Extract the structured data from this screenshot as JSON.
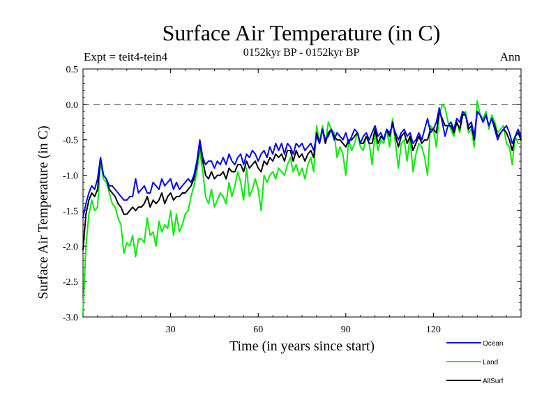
{
  "chart_data": {
    "type": "line",
    "title": "Surface Air Temperature (in C)",
    "subtitle": "0152kyr BP - 0152kyr BP",
    "experiment_label": "Expt = teit4-tein4",
    "season_label": "Ann",
    "xlabel": "Time (in years since start)",
    "ylabel": "Surface Air Temperature (in C)",
    "xlim": [
      0,
      150
    ],
    "ylim": [
      -3.0,
      0.5
    ],
    "x_ticks": [
      30,
      60,
      90,
      120
    ],
    "y_ticks": [
      0.5,
      0.0,
      -0.5,
      -1.0,
      -1.5,
      -2.0,
      -2.5,
      -3.0
    ],
    "y_tick_labels": [
      "0.5",
      "0.0",
      "-0.5",
      "-1.0",
      "-1.5",
      "-2.0",
      "-2.5",
      "-3.0"
    ],
    "reference_line": 0.0,
    "x": [
      0,
      1,
      2,
      3,
      4,
      5,
      6,
      7,
      8,
      9,
      10,
      11,
      12,
      13,
      14,
      15,
      16,
      17,
      18,
      19,
      20,
      21,
      22,
      23,
      24,
      25,
      26,
      27,
      28,
      29,
      30,
      31,
      32,
      33,
      34,
      35,
      36,
      37,
      38,
      39,
      40,
      41,
      42,
      43,
      44,
      45,
      46,
      47,
      48,
      49,
      50,
      51,
      52,
      53,
      54,
      55,
      56,
      57,
      58,
      59,
      60,
      61,
      62,
      63,
      64,
      65,
      66,
      67,
      68,
      69,
      70,
      71,
      72,
      73,
      74,
      75,
      76,
      77,
      78,
      79,
      80,
      81,
      82,
      83,
      84,
      85,
      86,
      87,
      88,
      89,
      90,
      91,
      92,
      93,
      94,
      95,
      96,
      97,
      98,
      99,
      100,
      101,
      102,
      103,
      104,
      105,
      106,
      107,
      108,
      109,
      110,
      111,
      112,
      113,
      114,
      115,
      116,
      117,
      118,
      119,
      120,
      121,
      122,
      123,
      124,
      125,
      126,
      127,
      128,
      129,
      130,
      131,
      132,
      133,
      134,
      135,
      136,
      137,
      138,
      139,
      140,
      141,
      142,
      143,
      144,
      145,
      146,
      147,
      148,
      149,
      150
    ],
    "series": [
      {
        "name": "Ocean",
        "color": "#0000ff",
        "values": [
          -1.6,
          -1.4,
          -1.25,
          -1.15,
          -1.2,
          -1.05,
          -0.75,
          -1.0,
          -1.05,
          -1.15,
          -1.15,
          -1.2,
          -1.25,
          -1.3,
          -1.35,
          -1.35,
          -1.3,
          -1.3,
          -1.05,
          -1.25,
          -1.2,
          -1.15,
          -1.25,
          -1.25,
          -1.1,
          -1.15,
          -1.2,
          -1.05,
          -1.15,
          -1.1,
          -1.05,
          -1.2,
          -1.1,
          -1.2,
          -1.15,
          -1.1,
          -1.05,
          -1.1,
          -1.0,
          -0.8,
          -0.5,
          -0.75,
          -0.85,
          -0.8,
          -0.8,
          -0.9,
          -0.8,
          -0.85,
          -0.75,
          -0.85,
          -0.7,
          -0.8,
          -0.85,
          -0.75,
          -0.7,
          -0.85,
          -0.7,
          -0.75,
          -0.65,
          -0.7,
          -0.8,
          -0.7,
          -0.65,
          -0.75,
          -0.6,
          -0.7,
          -0.55,
          -0.65,
          -0.55,
          -0.7,
          -0.55,
          -0.6,
          -0.7,
          -0.55,
          -0.6,
          -0.55,
          -0.65,
          -0.6,
          -0.55,
          -0.65,
          -0.45,
          -0.55,
          -0.35,
          -0.5,
          -0.45,
          -0.35,
          -0.5,
          -0.4,
          -0.45,
          -0.5,
          -0.4,
          -0.55,
          -0.45,
          -0.35,
          -0.4,
          -0.55,
          -0.45,
          -0.4,
          -0.5,
          -0.4,
          -0.3,
          -0.45,
          -0.4,
          -0.5,
          -0.35,
          -0.4,
          -0.3,
          -0.4,
          -0.5,
          -0.4,
          -0.35,
          -0.45,
          -0.4,
          -0.55,
          -0.5,
          -0.4,
          -0.5,
          -0.35,
          -0.2,
          -0.4,
          -0.35,
          -0.25,
          -0.05,
          -0.25,
          -0.45,
          -0.3,
          -0.25,
          -0.35,
          -0.2,
          -0.25,
          -0.1,
          -0.15,
          -0.3,
          -0.25,
          -0.45,
          -0.1,
          -0.15,
          -0.25,
          -0.15,
          -0.3,
          -0.2,
          -0.35,
          -0.5,
          -0.4,
          -0.35,
          -0.3,
          -0.4,
          -0.55,
          -0.45,
          -0.35,
          -0.45
        ]
      },
      {
        "name": "Land",
        "color": "#00ee00",
        "values": [
          -2.95,
          -2.0,
          -1.55,
          -1.35,
          -1.5,
          -1.45,
          -0.8,
          -1.05,
          -1.1,
          -1.25,
          -1.4,
          -1.45,
          -1.6,
          -1.7,
          -2.1,
          -1.95,
          -2.0,
          -1.85,
          -2.15,
          -1.9,
          -1.9,
          -1.95,
          -1.6,
          -1.85,
          -1.8,
          -2.0,
          -1.65,
          -1.8,
          -1.7,
          -1.75,
          -1.5,
          -1.85,
          -1.55,
          -1.8,
          -1.7,
          -1.55,
          -1.5,
          -1.3,
          -1.15,
          -0.95,
          -0.65,
          -0.95,
          -1.3,
          -1.4,
          -1.2,
          -1.45,
          -1.35,
          -1.25,
          -1.3,
          -1.4,
          -1.1,
          -1.3,
          -1.15,
          -0.95,
          -1.1,
          -1.35,
          -0.9,
          -1.3,
          -1.2,
          -1.05,
          -1.2,
          -1.5,
          -1.0,
          -1.1,
          -1.0,
          -0.95,
          -1.05,
          -0.9,
          -0.95,
          -1.0,
          -0.85,
          -0.75,
          -0.95,
          -0.85,
          -1.0,
          -0.9,
          -1.05,
          -0.85,
          -0.75,
          -0.95,
          -0.3,
          -0.55,
          -0.3,
          -0.55,
          -0.25,
          -0.35,
          -0.4,
          -0.75,
          -0.6,
          -0.7,
          -1.0,
          -0.5,
          -0.65,
          -0.55,
          -0.4,
          -0.6,
          -0.65,
          -0.45,
          -0.55,
          -0.85,
          -0.4,
          -0.65,
          -0.5,
          -0.55,
          -0.35,
          -0.6,
          -0.2,
          -0.55,
          -0.9,
          -0.55,
          -0.5,
          -0.8,
          -0.45,
          -0.95,
          -0.7,
          -0.55,
          -0.6,
          -0.75,
          -1.0,
          -0.3,
          -0.35,
          -0.6,
          -0.15,
          0.0,
          -0.05,
          -0.25,
          -0.35,
          -0.45,
          -0.25,
          -0.4,
          -0.15,
          -0.1,
          -0.4,
          -0.35,
          -0.6,
          0.05,
          -0.15,
          -0.2,
          -0.1,
          -0.35,
          -0.15,
          -0.25,
          -0.4,
          -0.35,
          -0.3,
          -0.55,
          -0.6,
          -0.85,
          -0.45,
          -0.55,
          -0.55
        ]
      },
      {
        "name": "AllSurf",
        "color": "#000000",
        "values": [
          -2.05,
          -1.55,
          -1.35,
          -1.25,
          -1.3,
          -1.2,
          -0.75,
          -1.0,
          -1.05,
          -1.2,
          -1.25,
          -1.3,
          -1.4,
          -1.45,
          -1.55,
          -1.55,
          -1.5,
          -1.45,
          -1.5,
          -1.45,
          -1.45,
          -1.4,
          -1.3,
          -1.45,
          -1.35,
          -1.4,
          -1.35,
          -1.25,
          -1.4,
          -1.3,
          -1.25,
          -1.35,
          -1.3,
          -1.3,
          -1.25,
          -1.25,
          -1.2,
          -1.15,
          -1.05,
          -0.85,
          -0.55,
          -0.8,
          -1.0,
          -1.05,
          -0.95,
          -1.05,
          -1.0,
          -1.0,
          -0.95,
          -1.05,
          -0.9,
          -0.95,
          -0.95,
          -0.85,
          -0.85,
          -0.95,
          -0.8,
          -0.9,
          -0.85,
          -0.8,
          -0.9,
          -0.95,
          -0.8,
          -0.85,
          -0.75,
          -0.8,
          -0.7,
          -0.75,
          -0.7,
          -0.8,
          -0.65,
          -0.65,
          -0.8,
          -0.65,
          -0.75,
          -0.7,
          -0.8,
          -0.7,
          -0.65,
          -0.75,
          -0.4,
          -0.55,
          -0.35,
          -0.55,
          -0.4,
          -0.35,
          -0.45,
          -0.5,
          -0.5,
          -0.55,
          -0.6,
          -0.5,
          -0.5,
          -0.45,
          -0.4,
          -0.55,
          -0.55,
          -0.45,
          -0.55,
          -0.55,
          -0.35,
          -0.55,
          -0.45,
          -0.5,
          -0.35,
          -0.45,
          -0.25,
          -0.45,
          -0.6,
          -0.45,
          -0.4,
          -0.55,
          -0.45,
          -0.65,
          -0.55,
          -0.45,
          -0.55,
          -0.5,
          -0.5,
          -0.35,
          -0.35,
          -0.4,
          -0.1,
          -0.2,
          -0.3,
          -0.3,
          -0.3,
          -0.4,
          -0.25,
          -0.35,
          -0.15,
          -0.15,
          -0.35,
          -0.3,
          -0.5,
          -0.1,
          -0.15,
          -0.25,
          -0.15,
          -0.3,
          -0.2,
          -0.3,
          -0.45,
          -0.4,
          -0.35,
          -0.4,
          -0.5,
          -0.65,
          -0.45,
          -0.4,
          -0.5
        ]
      }
    ],
    "legend_placement": "bottom-right"
  }
}
